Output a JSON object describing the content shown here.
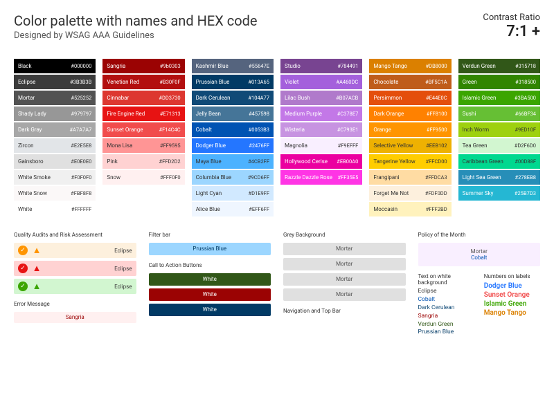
{
  "header": {
    "title": "Color palette with names and HEX code",
    "subtitle": "Designed by WSAG AAA Guidelines",
    "contrast_label": "Contrast Ratio",
    "contrast_value": "7:1 +"
  },
  "columns": [
    [
      {
        "name": "Black",
        "hex": "#000000",
        "bg": "#000000",
        "fg": "#ffffff"
      },
      {
        "name": "Eclipse",
        "hex": "#3B3B3B",
        "bg": "#3B3B3B",
        "fg": "#ffffff"
      },
      {
        "name": "Mortar",
        "hex": "#525252",
        "bg": "#525252",
        "fg": "#ffffff"
      },
      {
        "name": "Shady Lady",
        "hex": "#979797",
        "bg": "#979797",
        "fg": "#ffffff"
      },
      {
        "name": "Dark Gray",
        "hex": "#A7A7A7",
        "bg": "#A7A7A7",
        "fg": "#ffffff"
      },
      {
        "name": "Zircon",
        "hex": "#E2E5E8",
        "bg": "#E2E5E8",
        "fg": "#333333"
      },
      {
        "name": "Gainsboro",
        "hex": "#E0E0E0",
        "bg": "#E0E0E0",
        "fg": "#333333"
      },
      {
        "name": "White Smoke",
        "hex": "#F0F0F0",
        "bg": "#F0F0F0",
        "fg": "#333333"
      },
      {
        "name": "White Snow",
        "hex": "#FBF8F8",
        "bg": "#FBF8F8",
        "fg": "#333333"
      },
      {
        "name": "White",
        "hex": "#FFFFFF",
        "bg": "#FFFFFF",
        "fg": "#333333"
      }
    ],
    [
      {
        "name": "Sangria",
        "hex": "#9b0303",
        "bg": "#9b0303",
        "fg": "#ffffff"
      },
      {
        "name": "Venetian Red",
        "hex": "#B30F0F",
        "bg": "#B30F0F",
        "fg": "#ffffff"
      },
      {
        "name": "Cinnabar",
        "hex": "#DD3730",
        "bg": "#DD3730",
        "fg": "#ffffff"
      },
      {
        "name": "Fire Engine Red",
        "hex": "#E71313",
        "bg": "#E71313",
        "fg": "#ffffff"
      },
      {
        "name": "Sunset Orange",
        "hex": "#F14C4C",
        "bg": "#F14C4C",
        "fg": "#ffffff"
      },
      {
        "name": "Mona Lisa",
        "hex": "#FF9595",
        "bg": "#FF9595",
        "fg": "#333333"
      },
      {
        "name": "Pink",
        "hex": "#FFD2D2",
        "bg": "#FFD2D2",
        "fg": "#333333"
      },
      {
        "name": "Snow",
        "hex": "#FFF0F0",
        "bg": "#FFF0F0",
        "fg": "#333333"
      }
    ],
    [
      {
        "name": "Kashmir Blue",
        "hex": "#55647E",
        "bg": "#55647E",
        "fg": "#ffffff"
      },
      {
        "name": "Prussian Blue",
        "hex": "#013A65",
        "bg": "#013A65",
        "fg": "#ffffff"
      },
      {
        "name": "Dark Cerulean",
        "hex": "#104A77",
        "bg": "#104A77",
        "fg": "#ffffff"
      },
      {
        "name": "Jelly Bean",
        "hex": "#457598",
        "bg": "#457598",
        "fg": "#ffffff"
      },
      {
        "name": "Cobalt",
        "hex": "#0053B3",
        "bg": "#0053B3",
        "fg": "#ffffff"
      },
      {
        "name": "Dodger Blue",
        "hex": "#2476FF",
        "bg": "#2476FF",
        "fg": "#ffffff"
      },
      {
        "name": "Maya Blue",
        "hex": "#4CB2FF",
        "bg": "#4CB2FF",
        "fg": "#333333"
      },
      {
        "name": "Columbia Blue",
        "hex": "#9CD6FF",
        "bg": "#9CD6FF",
        "fg": "#333333"
      },
      {
        "name": "Light Cyan",
        "hex": "#D1E9FF",
        "bg": "#D1E9FF",
        "fg": "#333333"
      },
      {
        "name": "Alice Blue",
        "hex": "#EFF6FF",
        "bg": "#EFF6FF",
        "fg": "#333333"
      }
    ],
    [
      {
        "name": "Studio",
        "hex": "#784491",
        "bg": "#784491",
        "fg": "#ffffff"
      },
      {
        "name": "Violet",
        "hex": "#A460DC",
        "bg": "#A460DC",
        "fg": "#ffffff"
      },
      {
        "name": "Lilac Bush",
        "hex": "#B07ACB",
        "bg": "#B07ACB",
        "fg": "#ffffff"
      },
      {
        "name": "Medium Purple",
        "hex": "#C378E7",
        "bg": "#C378E7",
        "fg": "#ffffff"
      },
      {
        "name": "Wisteria",
        "hex": "#C793E1",
        "bg": "#C793E1",
        "fg": "#ffffff"
      },
      {
        "name": "Magnolia",
        "hex": "#F9EFFF",
        "bg": "#F9EFFF",
        "fg": "#333333"
      },
      {
        "name": "Hollywood Cerise",
        "hex": "#EB00A0",
        "bg": "#EB00A0",
        "fg": "#ffffff"
      },
      {
        "name": "Razzle Dazzle Rose",
        "hex": "#FF35E5",
        "bg": "#FF35E5",
        "fg": "#ffffff"
      }
    ],
    [
      {
        "name": "Mango Tango",
        "hex": "#DB8000",
        "bg": "#DB8000",
        "fg": "#ffffff"
      },
      {
        "name": "Chocolate",
        "hex": "#BF5C1A",
        "bg": "#BF5C1A",
        "fg": "#ffffff"
      },
      {
        "name": "Persimmon",
        "hex": "#E44E0C",
        "bg": "#E44E0C",
        "fg": "#ffffff"
      },
      {
        "name": "Dark Orange",
        "hex": "#FF8100",
        "bg": "#FF8100",
        "fg": "#ffffff"
      },
      {
        "name": "Orange",
        "hex": "#FF9500",
        "bg": "#FF9500",
        "fg": "#ffffff"
      },
      {
        "name": "Selective Yellow",
        "hex": "#EEB102",
        "bg": "#EEB102",
        "fg": "#333333"
      },
      {
        "name": "Tangerine Yellow",
        "hex": "#FFCD00",
        "bg": "#FFCD00",
        "fg": "#333333"
      },
      {
        "name": "Frangipani",
        "hex": "#FFDCA3",
        "bg": "#FFDCA3",
        "fg": "#333333"
      },
      {
        "name": "Forget Me Not",
        "hex": "#FDF0DD",
        "bg": "#FDF0DD",
        "fg": "#333333"
      },
      {
        "name": "Moccasin",
        "hex": "#FFF2BD",
        "bg": "#FFF2BD",
        "fg": "#333333"
      }
    ],
    [
      {
        "name": "Verdun Green",
        "hex": "#315718",
        "bg": "#315718",
        "fg": "#ffffff"
      },
      {
        "name": "Green",
        "hex": "#318500",
        "bg": "#318500",
        "fg": "#ffffff"
      },
      {
        "name": "Islamic Green",
        "hex": "#3BA500",
        "bg": "#3BA500",
        "fg": "#ffffff"
      },
      {
        "name": "Sushi",
        "hex": "#66BF34",
        "bg": "#66BF34",
        "fg": "#ffffff"
      },
      {
        "name": "Inch Worm",
        "hex": "#9ED10F",
        "bg": "#9ED10F",
        "fg": "#333333"
      },
      {
        "name": "Tea Green",
        "hex": "#D2F6D0",
        "bg": "#D2F6D0",
        "fg": "#333333"
      },
      {
        "name": "Caribbean Green",
        "hex": "#00D88F",
        "bg": "#00D88F",
        "fg": "#333333"
      },
      {
        "name": "Light Sea Green",
        "hex": "#278EB8",
        "bg": "#278EB8",
        "fg": "#ffffff"
      },
      {
        "name": "Summer Sky",
        "hex": "#25B7D3",
        "bg": "#25B7D3",
        "fg": "#ffffff"
      }
    ]
  ],
  "examples": {
    "audit_label": "Quality Audits and Risk Assessment",
    "audits": [
      {
        "bg": "#FDF0DD",
        "check_bg": "#FF9500",
        "tri_color": "#FF9500",
        "label": "Eclipse"
      },
      {
        "bg": "#FFD2D2",
        "check_bg": "#E71313",
        "tri_color": "#E71313",
        "label": "Eclipse"
      },
      {
        "bg": "#D2F6D0",
        "check_bg": "#3BA500",
        "tri_color": "#3BA500",
        "label": "Eclipse"
      }
    ],
    "error_label": "Error Message",
    "error": {
      "bg": "#FFF0F0",
      "text": "Sangria",
      "color": "#9b0303"
    },
    "filter_label": "Filter bar",
    "filter": {
      "bg": "#9CD6FF",
      "text": "Prussian Blue",
      "color": "#013A65"
    },
    "cta_label": "Call to Action Buttons",
    "ctas": [
      {
        "bg": "#315718",
        "text": "White",
        "color": "#ffffff"
      },
      {
        "bg": "#9b0303",
        "text": "White",
        "color": "#ffffff"
      },
      {
        "bg": "#013A65",
        "text": "White",
        "color": "#ffffff"
      }
    ],
    "grey_label": "Grey Background",
    "greys": [
      "Mortar",
      "Mortar",
      "Mortar",
      "Mortar"
    ],
    "nav_label": "Navigation and Top Bar",
    "policy_label": "Policy of the Month",
    "policy": {
      "l1": "Mortar",
      "l2": "Cobalt"
    },
    "text_label": "Text on white background",
    "text_items": [
      {
        "text": "Eclipse",
        "color": "#3B3B3B"
      },
      {
        "text": "Cobalt",
        "color": "#0053B3"
      },
      {
        "text": "Dark Cerulean",
        "color": "#104A77"
      },
      {
        "text": "Sangria",
        "color": "#9b0303"
      },
      {
        "text": "Verdun Green",
        "color": "#315718"
      },
      {
        "text": "Prussian Blue",
        "color": "#013A65"
      }
    ],
    "num_label": "Numbers on labels",
    "num_items": [
      {
        "text": "Dodger Blue",
        "color": "#2476FF"
      },
      {
        "text": "Sunset Orange",
        "color": "#F14C4C"
      },
      {
        "text": "Islamic Green",
        "color": "#3BA500"
      },
      {
        "text": "Mango Tango",
        "color": "#DB8000"
      }
    ]
  }
}
